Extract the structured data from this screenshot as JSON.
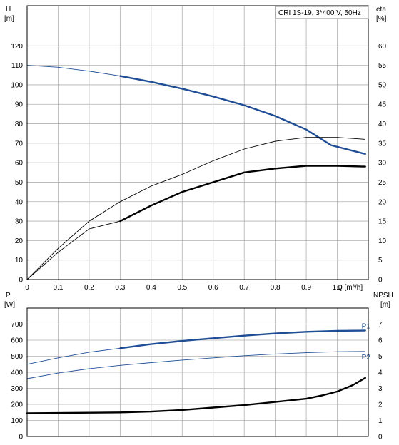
{
  "chart_data": [
    {
      "type": "line",
      "panel": "upper",
      "title": "CRI 1S-19, 3*400 V, 50Hz",
      "ylabel_left": "H",
      "ylabel_left_unit": "[m]",
      "ylabel_right": "eta",
      "ylabel_right_unit": "[%]",
      "xlabel": "Q [m³/h]",
      "xlim": [
        0,
        1.1
      ],
      "ylim_left": [
        0,
        130
      ],
      "ylim_right": [
        0,
        65
      ],
      "x_ticks": [
        "0",
        "0.1",
        "0.2",
        "0.3",
        "0.4",
        "0.5",
        "0.6",
        "0.7",
        "0.8",
        "0.9",
        "1.0"
      ],
      "y_left_ticks": [
        "0",
        "10",
        "20",
        "30",
        "40",
        "50",
        "60",
        "70",
        "80",
        "90",
        "100",
        "110",
        "120"
      ],
      "y_right_ticks": [
        "0",
        "5",
        "10",
        "15",
        "20",
        "25",
        "30",
        "35",
        "40",
        "45",
        "50",
        "55",
        "60"
      ],
      "grid": true,
      "series": [
        {
          "color": "#1f4e96",
          "axis": "left",
          "points": [
            [
              0,
              110
            ],
            [
              0.1,
              109
            ],
            [
              0.2,
              107
            ],
            [
              0.3,
              104.5
            ],
            [
              0.4,
              101.5
            ],
            [
              0.5,
              98
            ],
            [
              0.6,
              94
            ],
            [
              0.7,
              89.5
            ],
            [
              0.8,
              84
            ],
            [
              0.9,
              77
            ],
            [
              0.98,
              69
            ],
            [
              1.09,
              64.5
            ]
          ],
          "emphasis": [
            0.3,
            1.09
          ]
        },
        {
          "color": "#000000",
          "axis": "right",
          "points": [
            [
              0,
              0
            ],
            [
              0.1,
              8
            ],
            [
              0.2,
              15
            ],
            [
              0.3,
              20
            ],
            [
              0.4,
              24
            ],
            [
              0.5,
              27
            ],
            [
              0.6,
              30.5
            ],
            [
              0.7,
              33.5
            ],
            [
              0.8,
              35.5
            ],
            [
              0.9,
              36.5
            ],
            [
              1.0,
              36.5
            ],
            [
              1.09,
              36
            ]
          ],
          "emphasis": []
        },
        {
          "color": "#000000",
          "axis": "right",
          "points": [
            [
              0,
              0
            ],
            [
              0.1,
              7
            ],
            [
              0.2,
              13
            ],
            [
              0.3,
              15
            ],
            [
              0.4,
              19
            ],
            [
              0.5,
              22.5
            ],
            [
              0.6,
              25
            ],
            [
              0.7,
              27.5
            ],
            [
              0.8,
              28.5
            ],
            [
              0.9,
              29.2
            ],
            [
              1.0,
              29.2
            ],
            [
              1.09,
              29
            ]
          ],
          "emphasis": [
            0.3,
            1.09
          ]
        }
      ]
    },
    {
      "type": "line",
      "panel": "lower",
      "ylabel_left": "P",
      "ylabel_left_unit": "[W]",
      "ylabel_right": "NPSH",
      "ylabel_right_unit": "[m]",
      "xlim": [
        0,
        1.1
      ],
      "ylim_left": [
        0,
        800
      ],
      "ylim_right": [
        0,
        8
      ],
      "y_left_ticks": [
        "0",
        "100",
        "200",
        "300",
        "400",
        "500",
        "600",
        "700"
      ],
      "y_right_ticks": [
        "0",
        "1",
        "2",
        "3",
        "4",
        "5",
        "6",
        "7"
      ],
      "grid": true,
      "series": [
        {
          "name": "P1",
          "color": "#1f4e96",
          "axis": "left",
          "points": [
            [
              0,
              450
            ],
            [
              0.1,
              490
            ],
            [
              0.2,
              525
            ],
            [
              0.3,
              550
            ],
            [
              0.4,
              575
            ],
            [
              0.5,
              595
            ],
            [
              0.6,
              612
            ],
            [
              0.7,
              628
            ],
            [
              0.8,
              642
            ],
            [
              0.9,
              652
            ],
            [
              1.0,
              658
            ],
            [
              1.09,
              660
            ]
          ],
          "emphasis": [
            0.3,
            1.09
          ]
        },
        {
          "name": "P2",
          "color": "#1f4e96",
          "axis": "left",
          "points": [
            [
              0,
              360
            ],
            [
              0.1,
              395
            ],
            [
              0.2,
              422
            ],
            [
              0.3,
              443
            ],
            [
              0.4,
              460
            ],
            [
              0.5,
              476
            ],
            [
              0.6,
              490
            ],
            [
              0.7,
              503
            ],
            [
              0.8,
              514
            ],
            [
              0.9,
              522
            ],
            [
              1.0,
              528
            ],
            [
              1.09,
              530
            ]
          ],
          "emphasis": []
        },
        {
          "color": "#000000",
          "axis": "right",
          "points": [
            [
              0,
              1.45
            ],
            [
              0.1,
              1.46
            ],
            [
              0.2,
              1.48
            ],
            [
              0.3,
              1.5
            ],
            [
              0.4,
              1.55
            ],
            [
              0.5,
              1.65
            ],
            [
              0.6,
              1.8
            ],
            [
              0.7,
              1.95
            ],
            [
              0.8,
              2.15
            ],
            [
              0.9,
              2.35
            ],
            [
              0.95,
              2.55
            ],
            [
              1.0,
              2.8
            ],
            [
              1.05,
              3.2
            ],
            [
              1.09,
              3.65
            ]
          ],
          "emphasis": [
            0,
            1.09
          ]
        }
      ]
    }
  ]
}
